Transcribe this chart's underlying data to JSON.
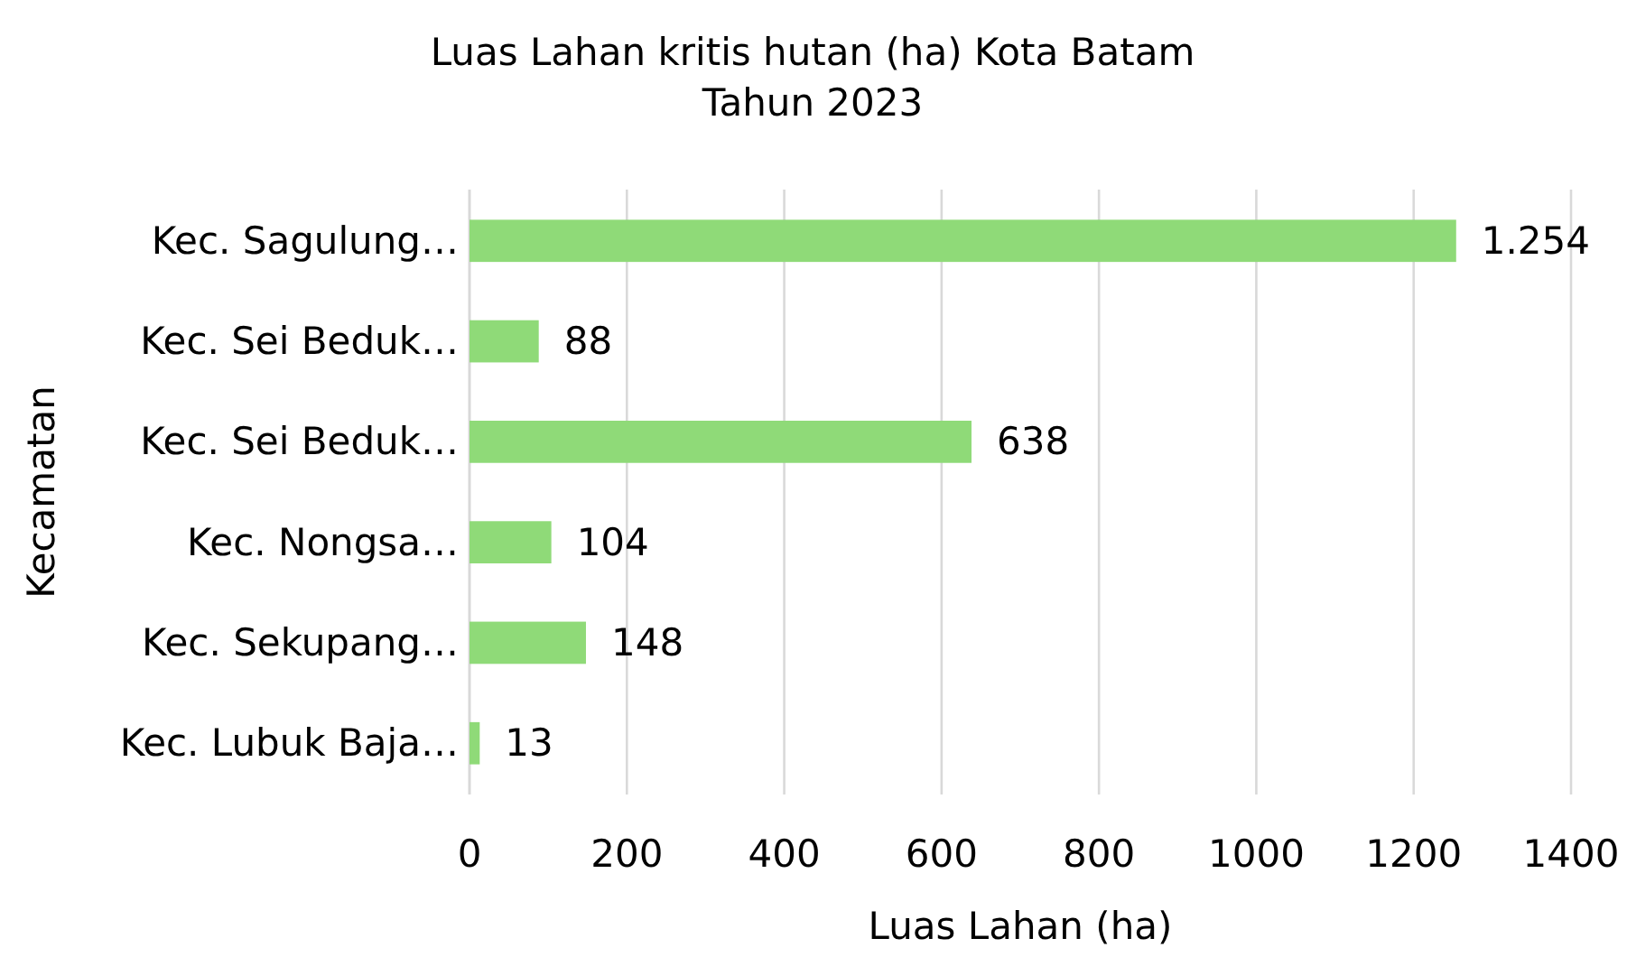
{
  "chart_data": {
    "type": "bar",
    "orientation": "horizontal",
    "title": "Luas Lahan kritis hutan (ha) Kota Batam\nTahun 2023",
    "xlabel": "Luas Lahan (ha)",
    "ylabel": "Kecamatan",
    "categories": [
      "Kec. Sagulung…",
      "Kec. Sei Beduk…",
      "Kec. Sei Beduk…",
      "Kec. Nongsa…",
      "Kec. Sekupang…",
      "Kec. Lubuk Baja…"
    ],
    "values": [
      1254,
      88,
      638,
      104,
      148,
      13
    ],
    "value_labels": [
      "1.254",
      "88",
      "638",
      "104",
      "148",
      "13"
    ],
    "color": "#8fda78",
    "xlim": [
      0,
      1400
    ],
    "xticks": [
      0,
      200,
      400,
      600,
      800,
      1000,
      1200,
      1400
    ],
    "grid": "x"
  }
}
